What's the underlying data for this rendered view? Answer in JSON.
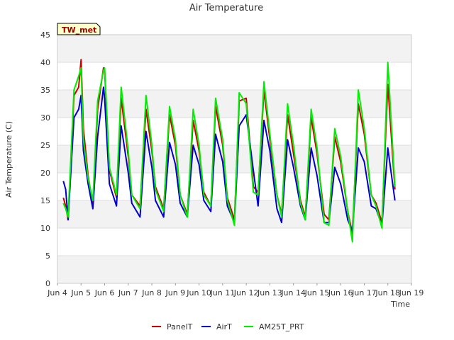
{
  "chart_data": {
    "type": "line",
    "title": "Air Temperature",
    "xlabel": "Time",
    "ylabel": "Air Temperature (C)",
    "station_badge": "TW_met",
    "xlim": [
      4,
      19
    ],
    "ylim": [
      0,
      45
    ],
    "x_ticks": [
      {
        "v": 4,
        "label": "Jun 4"
      },
      {
        "v": 5,
        "label": "Jun 5"
      },
      {
        "v": 6,
        "label": "Jun 6"
      },
      {
        "v": 7,
        "label": "Jun 7"
      },
      {
        "v": 8,
        "label": "Jun 8"
      },
      {
        "v": 9,
        "label": "Jun 9"
      },
      {
        "v": 10,
        "label": "Jun 10"
      },
      {
        "v": 11,
        "label": "Jun 11"
      },
      {
        "v": 12,
        "label": "Jun 12"
      },
      {
        "v": 13,
        "label": "Jun 13"
      },
      {
        "v": 14,
        "label": "Jun 14"
      },
      {
        "v": 15,
        "label": "Jun 15"
      },
      {
        "v": 16,
        "label": "Jun 16"
      },
      {
        "v": 17,
        "label": "Jun 17"
      },
      {
        "v": 18,
        "label": "Jun 18"
      },
      {
        "v": 19,
        "label": "Jun 19"
      }
    ],
    "y_ticks": [
      0,
      5,
      10,
      15,
      20,
      25,
      30,
      35,
      40,
      45
    ],
    "grid": true,
    "legend": "bottom-center",
    "series": [
      {
        "name": "PanelT",
        "color": "#cc0000",
        "x": [
          4.25,
          4.35,
          4.45,
          4.7,
          4.9,
          5.0,
          5.1,
          5.3,
          5.5,
          5.7,
          5.95,
          6.0,
          6.2,
          6.5,
          6.7,
          7.0,
          7.15,
          7.5,
          7.75,
          8.0,
          8.15,
          8.5,
          8.75,
          9.0,
          9.2,
          9.5,
          9.75,
          10.0,
          10.2,
          10.5,
          10.7,
          11.0,
          11.2,
          11.5,
          11.7,
          12.0,
          12.3,
          12.5,
          12.75,
          13.0,
          13.3,
          13.5,
          13.75,
          14.0,
          14.3,
          14.5,
          14.75,
          15.0,
          15.3,
          15.5,
          15.75,
          16.0,
          16.3,
          16.5,
          16.75,
          17.0,
          17.3,
          17.5,
          17.75,
          18.0,
          18.3
        ],
        "y": [
          15.5,
          14.0,
          11.5,
          34.0,
          35.5,
          40.5,
          28.0,
          19.5,
          14.0,
          31.5,
          39.0,
          38.5,
          20.5,
          15.5,
          33.5,
          23.0,
          16.0,
          14.0,
          31.5,
          24.0,
          17.5,
          13.5,
          30.5,
          25.0,
          16.0,
          12.5,
          29.5,
          24.0,
          16.5,
          14.0,
          32.0,
          25.0,
          15.5,
          11.5,
          33.0,
          33.5,
          17.5,
          16.5,
          35.0,
          26.0,
          16.0,
          12.5,
          30.5,
          23.5,
          15.0,
          12.0,
          30.0,
          23.5,
          12.5,
          11.5,
          26.5,
          22.0,
          13.0,
          9.0,
          32.5,
          27.0,
          16.0,
          14.5,
          11.0,
          36.0,
          17.0
        ]
      },
      {
        "name": "AirT",
        "color": "#0000cc",
        "x": [
          4.25,
          4.35,
          4.45,
          4.7,
          4.9,
          5.0,
          5.1,
          5.3,
          5.5,
          5.7,
          5.95,
          6.0,
          6.2,
          6.5,
          6.7,
          7.0,
          7.15,
          7.5,
          7.75,
          8.0,
          8.15,
          8.5,
          8.75,
          9.0,
          9.2,
          9.5,
          9.75,
          10.0,
          10.2,
          10.5,
          10.7,
          11.0,
          11.2,
          11.5,
          11.7,
          12.0,
          12.3,
          12.5,
          12.75,
          13.0,
          13.3,
          13.5,
          13.75,
          14.0,
          14.3,
          14.5,
          14.75,
          15.0,
          15.3,
          15.5,
          15.75,
          16.0,
          16.3,
          16.5,
          16.75,
          17.0,
          17.3,
          17.5,
          17.75,
          18.0,
          18.3
        ],
        "y": [
          18.5,
          17.0,
          11.5,
          30.0,
          31.5,
          34.0,
          24.0,
          18.0,
          13.5,
          26.5,
          35.5,
          33.5,
          18.0,
          14.0,
          28.5,
          20.0,
          14.5,
          12.0,
          27.5,
          21.0,
          15.0,
          12.0,
          25.5,
          21.5,
          14.5,
          12.0,
          25.0,
          21.5,
          15.0,
          13.0,
          27.0,
          22.0,
          14.0,
          11.0,
          28.5,
          30.5,
          20.5,
          14.0,
          29.5,
          24.0,
          13.5,
          11.0,
          26.0,
          21.0,
          14.0,
          11.5,
          24.5,
          19.5,
          11.0,
          11.0,
          21.0,
          18.0,
          11.5,
          9.5,
          24.5,
          22.0,
          14.0,
          13.5,
          10.5,
          24.5,
          15.0
        ]
      },
      {
        "name": "AM25T_PRT",
        "color": "#00ee00",
        "x": [
          4.25,
          4.35,
          4.45,
          4.7,
          4.9,
          5.0,
          5.1,
          5.3,
          5.5,
          5.7,
          5.95,
          6.0,
          6.2,
          6.5,
          6.7,
          7.0,
          7.15,
          7.5,
          7.75,
          8.0,
          8.15,
          8.5,
          8.75,
          9.0,
          9.2,
          9.5,
          9.75,
          10.0,
          10.2,
          10.5,
          10.7,
          11.0,
          11.2,
          11.5,
          11.7,
          12.0,
          12.3,
          12.5,
          12.75,
          13.0,
          13.3,
          13.5,
          13.75,
          14.0,
          14.3,
          14.5,
          14.75,
          15.0,
          15.3,
          15.5,
          15.75,
          16.0,
          16.3,
          16.5,
          16.75,
          17.0,
          17.3,
          17.5,
          17.75,
          18.0,
          18.3
        ],
        "y": [
          14.5,
          13.5,
          12.0,
          35.0,
          37.5,
          39.0,
          26.0,
          19.0,
          15.0,
          33.0,
          38.5,
          39.0,
          21.0,
          16.0,
          35.5,
          24.0,
          16.0,
          13.5,
          34.0,
          25.0,
          17.0,
          13.0,
          32.0,
          26.0,
          16.0,
          12.0,
          31.5,
          25.0,
          16.0,
          14.0,
          33.5,
          26.0,
          15.0,
          10.5,
          34.5,
          32.5,
          16.5,
          16.0,
          36.5,
          27.0,
          16.0,
          12.0,
          32.5,
          25.0,
          14.5,
          11.5,
          31.5,
          24.5,
          11.0,
          10.5,
          28.0,
          23.0,
          13.0,
          7.5,
          35.0,
          28.0,
          16.0,
          14.0,
          10.0,
          40.0,
          17.5
        ]
      }
    ]
  }
}
